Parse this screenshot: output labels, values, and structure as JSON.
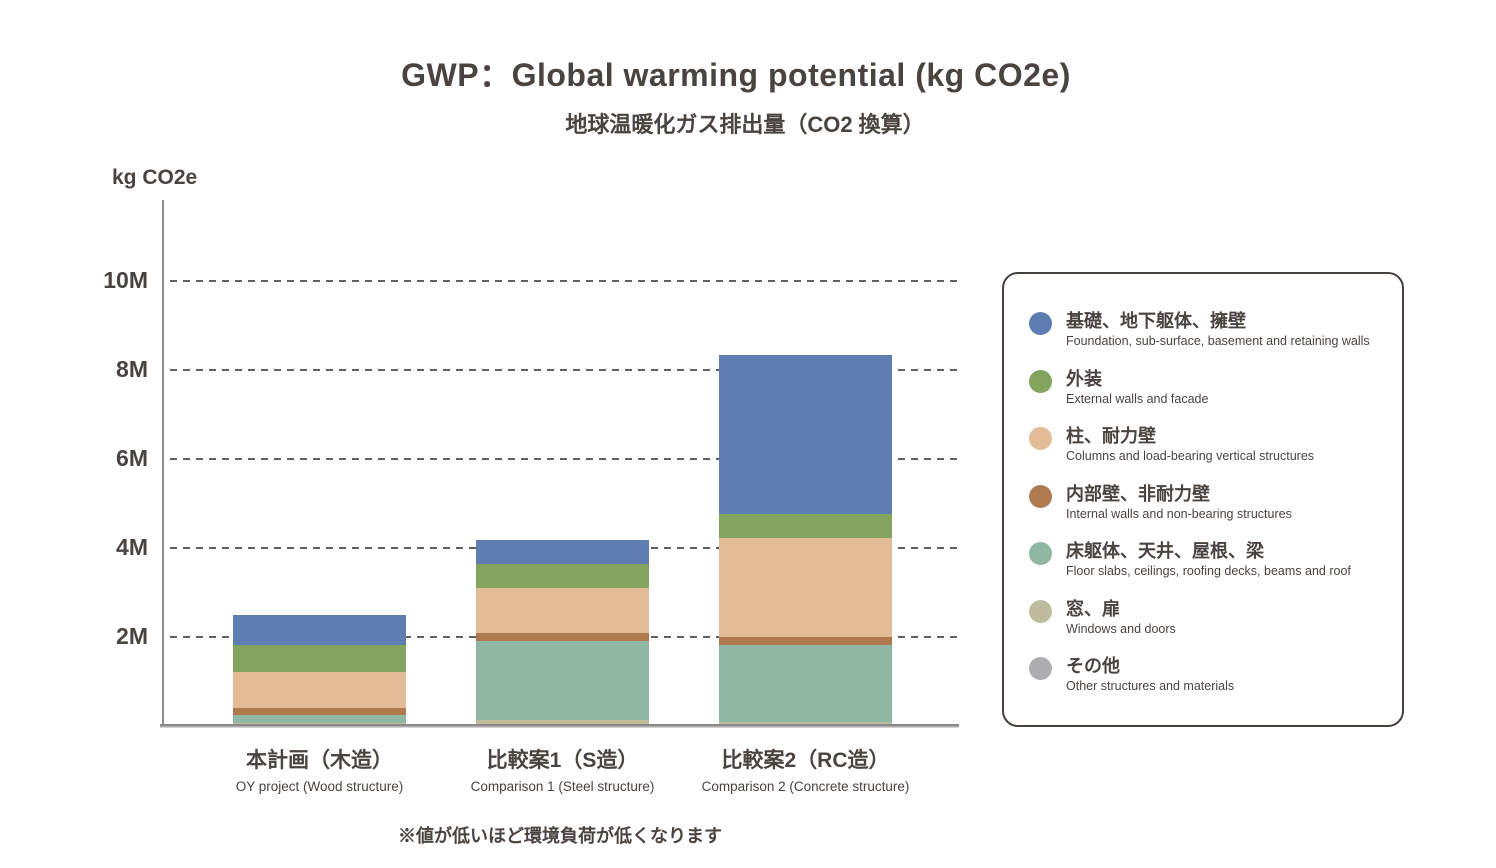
{
  "header": {
    "title": "GWP：Global warming potential (kg CO2e)",
    "subtitle": "地球温暖化ガス排出量（CO2 換算）"
  },
  "footnote": "※値が低いほど環境負荷が低くなります",
  "chart_data": {
    "type": "bar",
    "stacked": true,
    "title": "GWP：Global warming potential (kg CO2e)",
    "subtitle_jp": "地球温暖化ガス排出量（CO2 換算）",
    "ylabel": "kg CO2e",
    "unit": "million kg CO2e",
    "ylim": [
      0,
      11.8
    ],
    "grid": "horizontal dashed",
    "legend_position": "right",
    "y_ticks": [
      "10M",
      "8M",
      "6M",
      "4M",
      "2M"
    ],
    "y_tick_values": [
      10,
      8,
      6,
      4,
      2
    ],
    "categories": [
      {
        "jp": "本計画（木造）",
        "en": "OY project (Wood structure)"
      },
      {
        "jp": "比較案1（S造）",
        "en": "Comparison 1 (Steel structure)"
      },
      {
        "jp": "比較案2（RC造）",
        "en": "Comparison 2 (Concrete structure)"
      }
    ],
    "totals_M": [
      2.5,
      4.2,
      8.3
    ],
    "series": [
      {
        "name_jp": "基礎、地下躯体、擁壁",
        "name_en": "Foundation, sub-surface, basement and retaining walls",
        "color": "#5e7db0",
        "values": [
          0.67,
          0.54,
          3.56
        ]
      },
      {
        "name_jp": "外装",
        "name_en": "External walls and facade",
        "color": "#83a45f",
        "values": [
          0.61,
          0.54,
          0.54
        ]
      },
      {
        "name_jp": "柱、耐力壁",
        "name_en": "Columns and load-bearing vertical structures",
        "color": "#e2bc97",
        "values": [
          0.82,
          1.03,
          2.24
        ]
      },
      {
        "name_jp": "内部壁、非耐力壁",
        "name_en": "Internal walls and non-bearing structures",
        "color": "#b07a50",
        "values": [
          0.15,
          0.16,
          0.18
        ]
      },
      {
        "name_jp": "床躯体、天井、屋根、梁",
        "name_en": "Floor slabs, ceilings, roofing decks, beams and roof",
        "color": "#90b7a4",
        "values": [
          0.19,
          1.79,
          1.72
        ]
      },
      {
        "name_jp": "窓、扉",
        "name_en": "Windows and doors",
        "color": "#bfbc9e",
        "values": [
          0.06,
          0.13,
          0.09
        ]
      },
      {
        "name_jp": "その他",
        "name_en": "Other structures and materials",
        "color": "#aeadb0",
        "values": [
          0,
          0,
          0
        ]
      }
    ],
    "stack_order_bottom_to_top": [
      5,
      4,
      3,
      2,
      1,
      0,
      6
    ]
  }
}
